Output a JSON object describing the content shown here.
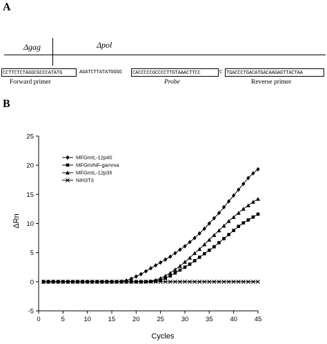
{
  "panel_a": {
    "label": "A",
    "region_gag": "Δgag",
    "region_pol": "Δpol",
    "seq_forward": "CCTTCTCTAGGCGCCCATATG",
    "seq_middle": "AGATCTTATATGGGG",
    "seq_probe": "CACCCCCGCCCCTTGTAAACTTCC",
    "seq_gap": "C",
    "seq_reverse": "TGACCCTGACATGACAAGAGTTACTAA",
    "label_forward": "Forward primer",
    "label_probe": "Probe",
    "label_reverse": "Reverse primer"
  },
  "panel_b": {
    "label": "B"
  },
  "chart_data": {
    "type": "line",
    "xlabel": "Cycles",
    "ylabel": "ΔRn",
    "xlim": [
      0,
      45
    ],
    "ylim": [
      -5,
      25
    ],
    "xticks": [
      0,
      5,
      10,
      15,
      20,
      25,
      30,
      35,
      40,
      45
    ],
    "yticks": [
      -5,
      0,
      5,
      10,
      15,
      20,
      25
    ],
    "grid": false,
    "legend_position": "top-left",
    "x": [
      1,
      2,
      3,
      4,
      5,
      6,
      7,
      8,
      9,
      10,
      11,
      12,
      13,
      14,
      15,
      16,
      17,
      18,
      19,
      20,
      21,
      22,
      23,
      24,
      25,
      26,
      27,
      28,
      29,
      30,
      31,
      32,
      33,
      34,
      35,
      36,
      37,
      38,
      39,
      40,
      41,
      42,
      43,
      44,
      45
    ],
    "series": [
      {
        "name": "MFGmIL-12p40",
        "marker": "diamond",
        "values": [
          0,
          0,
          0,
          0,
          0,
          0,
          0,
          0,
          0,
          0,
          0,
          0,
          0,
          0,
          0,
          0,
          0.05,
          0.2,
          0.5,
          0.9,
          1.3,
          1.8,
          2.3,
          2.8,
          3.3,
          3.8,
          4.3,
          4.9,
          5.5,
          6.1,
          6.8,
          7.5,
          8.3,
          9.1,
          10.0,
          10.9,
          11.8,
          12.8,
          13.8,
          14.8,
          15.8,
          16.8,
          17.8,
          18.6,
          19.3
        ]
      },
      {
        "name": "MFGmINF-gamma",
        "marker": "square",
        "values": [
          0,
          0,
          0,
          0,
          0,
          0,
          0,
          0,
          0,
          0,
          0,
          0,
          0,
          0,
          0,
          0,
          0,
          0,
          0,
          0,
          0,
          0,
          0.02,
          0.1,
          0.3,
          0.6,
          1.0,
          1.5,
          2.0,
          2.5,
          3.0,
          3.6,
          4.2,
          4.8,
          5.4,
          6.0,
          6.7,
          7.4,
          8.1,
          8.8,
          9.5,
          10.1,
          10.6,
          11.1,
          11.6
        ]
      },
      {
        "name": "MFGmIL-12p35",
        "marker": "triangle",
        "values": [
          0,
          0,
          0,
          0,
          0,
          0,
          0,
          0,
          0,
          0,
          0,
          0,
          0,
          0,
          0,
          0,
          0,
          0,
          0,
          0,
          0,
          0.02,
          0.1,
          0.3,
          0.6,
          1.0,
          1.5,
          2.1,
          2.7,
          3.4,
          4.1,
          4.9,
          5.6,
          6.4,
          7.2,
          8.0,
          8.8,
          9.6,
          10.4,
          11.1,
          11.8,
          12.5,
          13.1,
          13.7,
          14.2
        ]
      },
      {
        "name": "NIH3T3",
        "marker": "x",
        "values": [
          0,
          0,
          0,
          0,
          0,
          0,
          0,
          0,
          0,
          0,
          0,
          0,
          0,
          0,
          0,
          0,
          0,
          0,
          0,
          0,
          0,
          0,
          0,
          0,
          0,
          0,
          0,
          0,
          0,
          0,
          0,
          0,
          0,
          0,
          0,
          0,
          0,
          0,
          0,
          0,
          0,
          0,
          0,
          0,
          0
        ]
      }
    ]
  }
}
